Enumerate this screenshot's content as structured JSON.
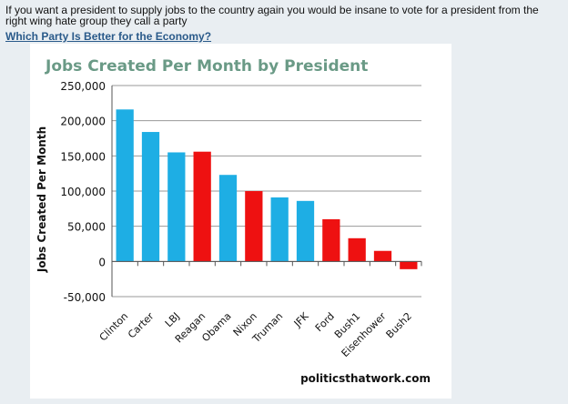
{
  "post": {
    "text": "If you want a president to supply jobs to the country again you would be insane to vote for a president from the right wing hate group they call a party",
    "link_text": "Which Party Is Better for the Economy?"
  },
  "colors": {
    "democrat": "#1eaee4",
    "republican": "#ee1111",
    "title": "#6a9a86",
    "background": "#e9eef2",
    "card": "#ffffff",
    "link": "#2a5a8a"
  },
  "chart_data": {
    "type": "bar",
    "title": "Jobs Created Per Month by President",
    "xlabel": "",
    "ylabel": "Jobs Created Per Month",
    "ylim": [
      -50000,
      250000
    ],
    "yticks": [
      250000,
      200000,
      150000,
      100000,
      50000,
      0,
      -50000
    ],
    "ytick_labels": [
      "250,000",
      "200,000",
      "150,000",
      "100,000",
      "50,000",
      "0",
      "-50,000"
    ],
    "grid": true,
    "categories": [
      "Clinton",
      "Carter",
      "LBJ",
      "Reagan",
      "Obama",
      "Nixon",
      "Truman",
      "JFK",
      "Ford",
      "Bush1",
      "Eisenhower",
      "Bush2"
    ],
    "values": [
      216000,
      184000,
      155000,
      156000,
      123000,
      100000,
      91000,
      86000,
      60000,
      33000,
      15000,
      -11000
    ],
    "party": [
      "D",
      "D",
      "D",
      "R",
      "D",
      "R",
      "D",
      "D",
      "R",
      "R",
      "R",
      "R"
    ],
    "annotation": "politicsthatwork.com"
  }
}
